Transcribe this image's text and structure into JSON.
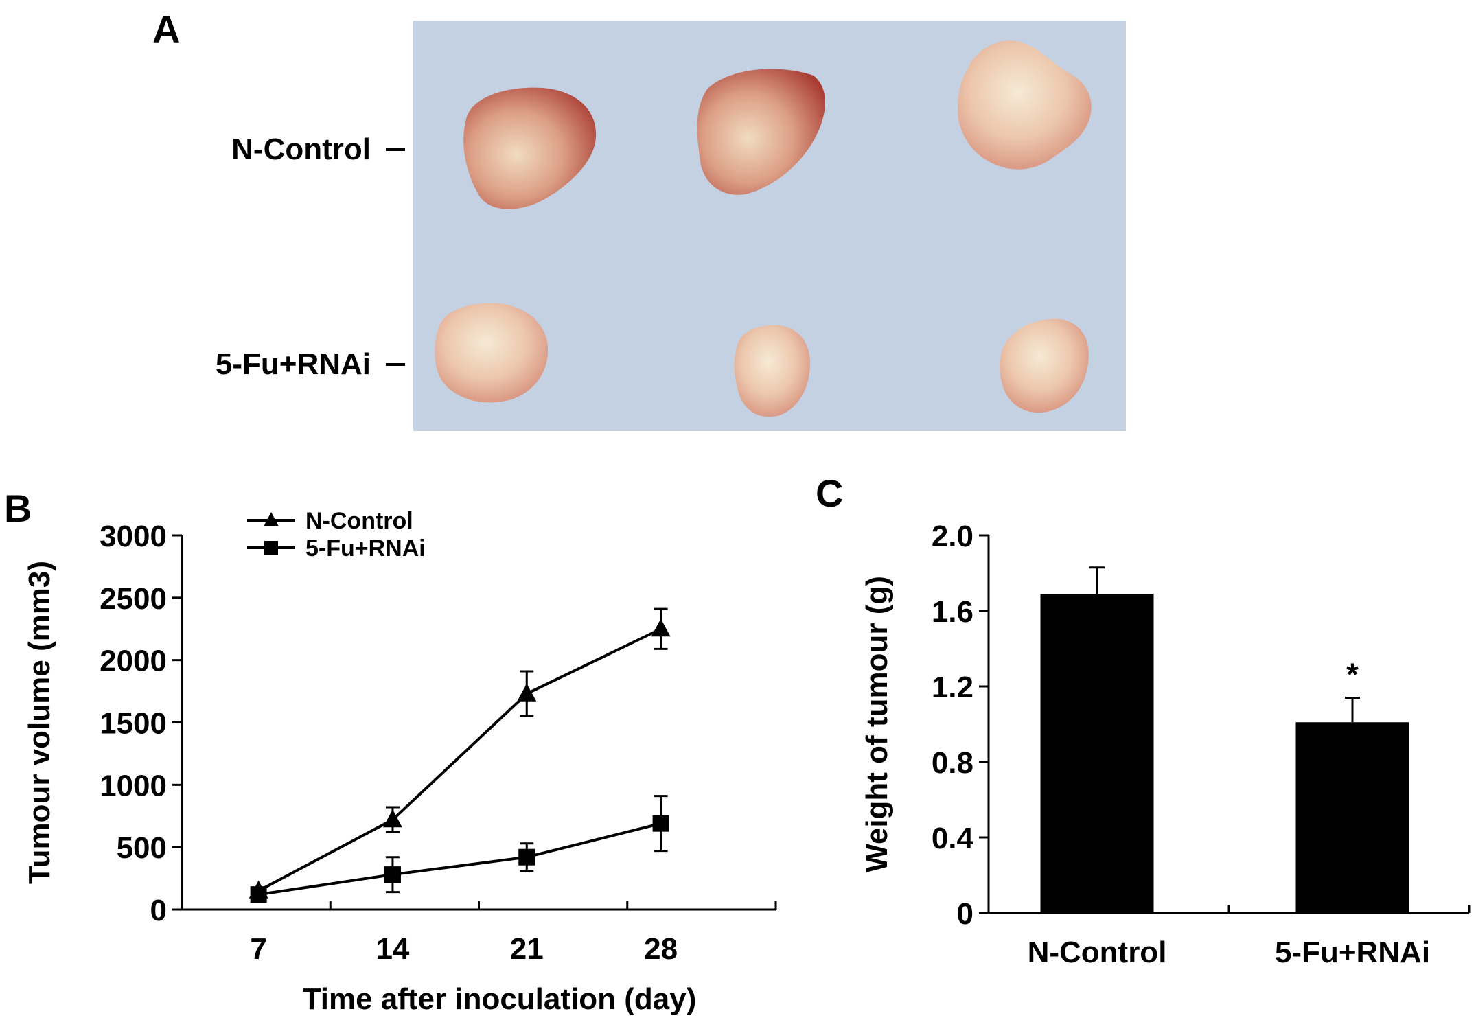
{
  "panels": {
    "a": {
      "letter": "A",
      "row_labels": [
        "N-Control",
        "5-Fu+RNAi"
      ],
      "photo": {
        "background_color": "#c4d1e3",
        "tumours_per_row": 3
      }
    },
    "b": {
      "letter": "B"
    },
    "c": {
      "letter": "C"
    }
  },
  "chart_data": [
    {
      "panel": "B",
      "type": "line",
      "xlabel": "Time after inoculation (day)",
      "ylabel": "Tumour volume (mm3)",
      "x": [
        7,
        14,
        21,
        28
      ],
      "x_tick_labels": [
        "7",
        "14",
        "21",
        "28"
      ],
      "xlim": [
        3,
        34
      ],
      "ylim": [
        0,
        3000
      ],
      "y_ticks": [
        0,
        500,
        1000,
        1500,
        2000,
        2500,
        3000
      ],
      "y_tick_labels": [
        "0",
        "500",
        "1000",
        "1500",
        "2000",
        "2500",
        "3000"
      ],
      "grid": false,
      "legend_position": "top-left",
      "series": [
        {
          "name": "N-Control",
          "marker": "triangle",
          "values": [
            150,
            720,
            1730,
            2250
          ],
          "errors": [
            20,
            100,
            180,
            160
          ]
        },
        {
          "name": "5-Fu+RNAi",
          "marker": "square",
          "values": [
            120,
            280,
            420,
            690
          ],
          "errors": [
            20,
            140,
            110,
            220
          ]
        }
      ]
    },
    {
      "panel": "C",
      "type": "bar",
      "ylabel": "Weight of  tumour (g)",
      "categories": [
        "N-Control",
        "5-Fu+RNAi"
      ],
      "values": [
        1.69,
        1.01
      ],
      "errors": [
        0.14,
        0.13
      ],
      "ylim": [
        0,
        2.0
      ],
      "y_ticks": [
        0,
        0.4,
        0.8,
        1.2,
        1.6,
        2.0
      ],
      "y_tick_labels": [
        "0",
        "0.4",
        "0.8",
        "1.2",
        "1.6",
        "2.0"
      ],
      "significance": [
        "",
        "*"
      ],
      "grid": false,
      "bar_color": "#000000"
    }
  ]
}
